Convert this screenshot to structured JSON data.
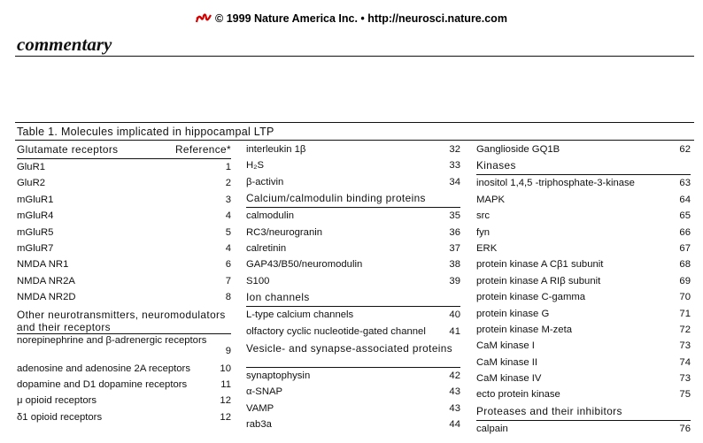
{
  "header": {
    "copyright": "© 1999 Nature America Inc. • http://neurosci.nature.com"
  },
  "section_label": "commentary",
  "table": {
    "title": "Table 1. Molecules implicated in hippocampal LTP",
    "col1": {
      "heading": "Glutamate receptors",
      "ref_heading": "Reference*",
      "rows": [
        {
          "name": "GluR1",
          "ref": "1"
        },
        {
          "name": "GluR2",
          "ref": "2"
        },
        {
          "name": "mGluR1",
          "ref": "3"
        },
        {
          "name": "mGluR4",
          "ref": "4"
        },
        {
          "name": "mGluR5",
          "ref": "5"
        },
        {
          "name": "mGluR7",
          "ref": "4"
        },
        {
          "name": "NMDA NR1",
          "ref": "6"
        },
        {
          "name": "NMDA NR2A",
          "ref": "7"
        },
        {
          "name": "NMDA NR2D",
          "ref": "8"
        }
      ],
      "heading2": "Other neurotransmitters, neuromodulators and their receptors",
      "rows2": [
        {
          "name": "norepinephrine and β-adrenergic receptors",
          "ref": "9"
        },
        {
          "name": "adenosine and adenosine 2A receptors",
          "ref": "10"
        },
        {
          "name": "dopamine and D1 dopamine receptors",
          "ref": "11"
        },
        {
          "name": "μ opioid receptors",
          "ref": "12"
        },
        {
          "name": "δ1 opioid receptors",
          "ref": "12"
        }
      ]
    },
    "col2": {
      "rows": [
        {
          "name": "interleukin 1β",
          "ref": "32"
        },
        {
          "name": "H₂S",
          "ref": "33"
        },
        {
          "name": "β-activin",
          "ref": "34"
        }
      ],
      "heading2": "Calcium/calmodulin binding proteins",
      "rows2": [
        {
          "name": "calmodulin",
          "ref": "35"
        },
        {
          "name": "RC3/neurogranin",
          "ref": "36"
        },
        {
          "name": "calretinin",
          "ref": "37"
        },
        {
          "name": "GAP43/B50/neuromodulin",
          "ref": "38"
        },
        {
          "name": "S100",
          "ref": "39"
        }
      ],
      "heading3": "Ion channels",
      "rows3": [
        {
          "name": "L-type calcium channels",
          "ref": "40"
        },
        {
          "name": "olfactory cyclic nucleotide-gated channel",
          "ref": "41"
        }
      ],
      "heading4": "Vesicle- and synapse-associated proteins",
      "rows4": [
        {
          "name": "synaptophysin",
          "ref": "42"
        },
        {
          "name": "α-SNAP",
          "ref": "43"
        },
        {
          "name": "VAMP",
          "ref": "43"
        },
        {
          "name": "rab3a",
          "ref": "44"
        }
      ]
    },
    "col3": {
      "rows": [
        {
          "name": "Ganglioside GQ1B",
          "ref": "62"
        }
      ],
      "heading2": "Kinases",
      "rows2": [
        {
          "name": "inositol 1,4,5 -triphosphate-3-kinase",
          "ref": "63"
        },
        {
          "name": "MAPK",
          "ref": "64"
        },
        {
          "name": "src",
          "ref": "65"
        },
        {
          "name": "fyn",
          "ref": "66"
        },
        {
          "name": "ERK",
          "ref": "67"
        },
        {
          "name": "protein kinase A Cβ1 subunit",
          "ref": "68"
        },
        {
          "name": "protein kinase A RIβ subunit",
          "ref": "69"
        },
        {
          "name": "protein kinase C-gamma",
          "ref": "70"
        },
        {
          "name": "protein kinase G",
          "ref": "71"
        },
        {
          "name": "protein kinase M-zeta",
          "ref": "72"
        },
        {
          "name": "CaM kinase I",
          "ref": "73"
        },
        {
          "name": "CaM kinase II",
          "ref": "74"
        },
        {
          "name": "CaM kinase IV",
          "ref": "73"
        },
        {
          "name": "ecto protein kinase",
          "ref": "75"
        }
      ],
      "heading3": "Proteases and their inhibitors",
      "rows3": [
        {
          "name": "calpain",
          "ref": "76"
        }
      ]
    }
  }
}
